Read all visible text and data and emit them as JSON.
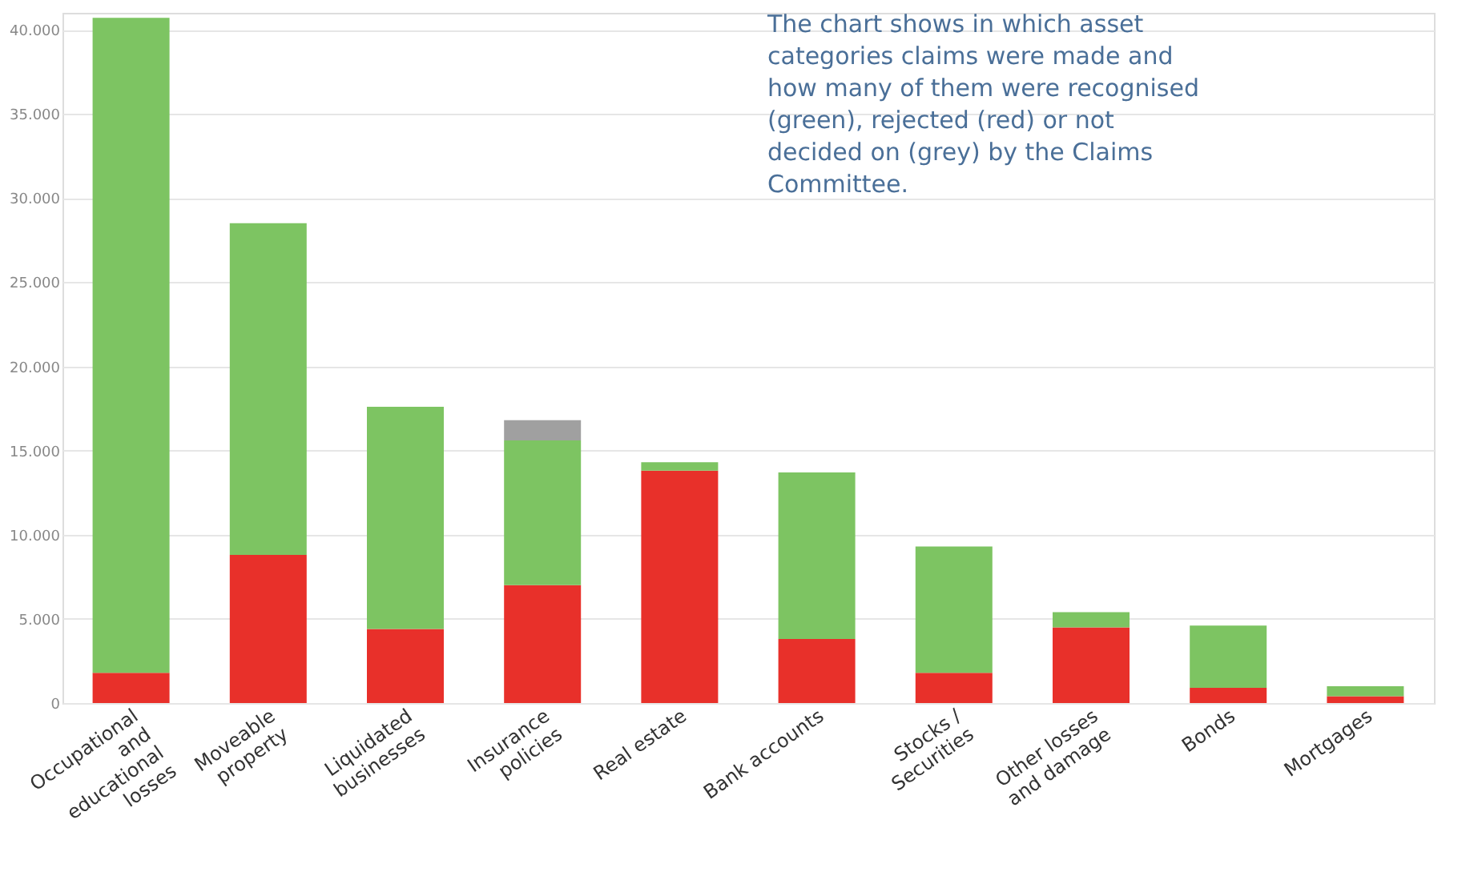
{
  "chart_data": {
    "type": "bar",
    "stacked": true,
    "categories": [
      "Occupational and educational losses",
      "Moveable property",
      "Liquidated businesses",
      "Insurance policies",
      "Real estate",
      "Bank accounts",
      "Stocks / Securities",
      "Other losses and damage",
      "Bonds",
      "Mortgages"
    ],
    "series": [
      {
        "color": "#e8302a",
        "values": [
          1800,
          8800,
          4400,
          7000,
          13800,
          3800,
          1800,
          4500,
          900,
          400
        ]
      },
      {
        "color": "#7dc462",
        "values": [
          38900,
          19700,
          13200,
          8600,
          500,
          9900,
          7500,
          900,
          3700,
          600
        ]
      },
      {
        "color": "#a0a0a0",
        "values": [
          0,
          0,
          0,
          1200,
          0,
          0,
          0,
          0,
          0,
          0
        ]
      }
    ],
    "ylim": [
      0,
      41000
    ],
    "yticks": [
      {
        "value": 0,
        "label": "0"
      },
      {
        "value": 5000,
        "label": "5.000"
      },
      {
        "value": 10000,
        "label": "10.000"
      },
      {
        "value": 15000,
        "label": "15.000"
      },
      {
        "value": 20000,
        "label": "20.000"
      },
      {
        "value": 25000,
        "label": "25.000"
      },
      {
        "value": 30000,
        "label": "30.000"
      },
      {
        "value": 35000,
        "label": "35.000"
      },
      {
        "value": 40000,
        "label": "40.000"
      }
    ],
    "grid": "y",
    "legend": false,
    "annotations": [
      "The chart shows in which asset categories claims were made and how many of them were recognised (green), rejected (red) or not decided on (grey) by the Claims Committee."
    ]
  }
}
